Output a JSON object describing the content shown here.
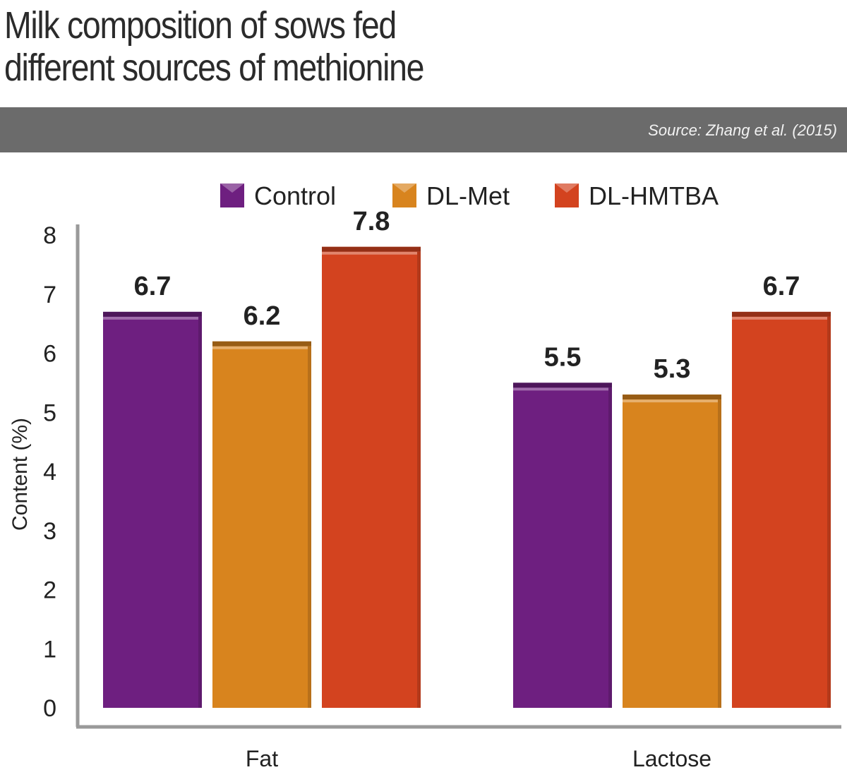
{
  "header": {
    "title_line1": "Milk composition of sows fed",
    "title_line2": "different sources of methionine",
    "source": "Source: Zhang et al. (2015)"
  },
  "colors": {
    "Control": "#6e1f80",
    "DL-Met": "#d8841e",
    "DL-HMTBA": "#d3431f",
    "axis": "#9a9a9a",
    "band": "#6b6b6b"
  },
  "chart_data": {
    "type": "bar",
    "title": "Milk composition of sows fed different sources of methionine",
    "categories": [
      "Fat",
      "Lactose"
    ],
    "series": [
      {
        "name": "Control",
        "values": [
          6.7,
          5.5
        ]
      },
      {
        "name": "DL-Met",
        "values": [
          6.2,
          5.3
        ]
      },
      {
        "name": "DL-HMTBA",
        "values": [
          7.8,
          6.7
        ]
      }
    ],
    "data_labels": [
      [
        "6.7",
        "5.5"
      ],
      [
        "6.2",
        "5.3"
      ],
      [
        "7.8",
        "6.7"
      ]
    ],
    "xlabel": "",
    "ylabel": "Content (%)",
    "ylim": [
      0,
      8
    ],
    "yticks": [
      "0",
      "1",
      "2",
      "3",
      "4",
      "5",
      "6",
      "7",
      "8"
    ],
    "grid": false,
    "legend": "top-center"
  }
}
